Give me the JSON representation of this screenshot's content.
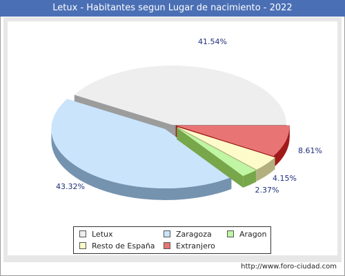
{
  "title": "Letux - Habitantes segun Lugar de nacimiento - 2022",
  "footer": "http://www.foro-ciudad.com",
  "chart_data": {
    "type": "pie",
    "title": "Letux - Habitantes segun Lugar de nacimiento - 2022",
    "slices": [
      {
        "label": "Letux",
        "value": 41.54,
        "display": "41.54%",
        "color": "#eeeeee",
        "side_color": "#9c9c9c"
      },
      {
        "label": "Zaragoza",
        "value": 43.32,
        "display": "43.32%",
        "color": "#c9e4fb",
        "side_color": "#7593af"
      },
      {
        "label": "Aragon",
        "value": 2.37,
        "display": "2.37%",
        "color": "#bff5a3",
        "side_color": "#78a64a"
      },
      {
        "label": "Resto de España",
        "value": 4.15,
        "display": "4.15%",
        "color": "#fcfbc9",
        "side_color": "#b2b07e"
      },
      {
        "label": "Extranjero",
        "value": 8.61,
        "display": "8.61%",
        "color": "#e87474",
        "side_color": "#a11a1a"
      }
    ],
    "legend": [
      [
        "Letux",
        "Zaragoza",
        "Aragon"
      ],
      [
        "Resto de España",
        "Extranjero"
      ]
    ]
  }
}
